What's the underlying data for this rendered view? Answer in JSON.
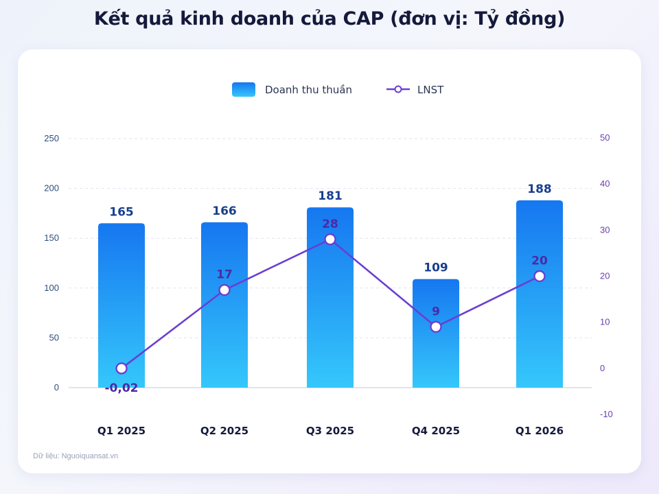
{
  "chart_data": {
    "type": "bar+line",
    "title": "Kết quả kinh doanh của CAP (đơn vị: Tỷ đồng)",
    "categories": [
      "Q1 2025",
      "Q2 2025",
      "Q3 2025",
      "Q4 2025",
      "Q1 2026"
    ],
    "series": [
      {
        "name": "Doanh thu thuần",
        "type": "bar",
        "axis": "left",
        "values": [
          165,
          166,
          181,
          109,
          188
        ],
        "labels": [
          "165",
          "166",
          "181",
          "109",
          "188"
        ]
      },
      {
        "name": "LNST",
        "type": "line",
        "axis": "right",
        "values": [
          -0.02,
          17,
          28,
          9,
          20
        ],
        "labels": [
          "-0,02",
          "17",
          "28",
          "9",
          "20"
        ]
      }
    ],
    "y_left": {
      "ylim": [
        0,
        250
      ],
      "ticks": [
        0,
        50,
        100,
        150,
        200,
        250
      ]
    },
    "y_right": {
      "ylim": [
        -10,
        50
      ],
      "ticks": [
        -10,
        0,
        10,
        20,
        30,
        40,
        50
      ]
    },
    "grid": true,
    "legend": "top-center"
  },
  "source": "Dữ liệu: Nguoiquansat.vn",
  "colors": {
    "bar_top": "#1677f0",
    "bar_bottom": "#35c7fb",
    "line": "#6a3fd1",
    "bar_label": "#173f8f",
    "line_label": "#4b2aa6",
    "left_axis": "#2e4c7a",
    "right_axis": "#6b3fb0",
    "category": "#151a3b",
    "grid": "#dfe4ee"
  }
}
